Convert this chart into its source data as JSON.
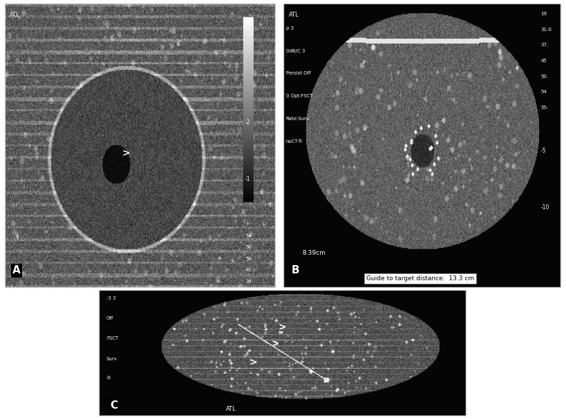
{
  "figure_bg": "#ffffff",
  "panel_bg": "#000000",
  "label_color": "#ffffff",
  "label_fontsize": 11,
  "label_bg": "#000000",
  "layout": {
    "top_row": [
      "A",
      "B"
    ],
    "bottom_row": [
      "C"
    ]
  },
  "panels": {
    "A": {
      "label": "A",
      "us_type": "thyroid_nodule",
      "arrow_symbol": ">",
      "bg_gradient": "medium_gray",
      "description": "Transverse US thyroid lobe with solid nodule and biopsy needle tip"
    },
    "B": {
      "label": "B",
      "us_type": "liver_mass",
      "bg_gradient": "dark",
      "text_overlay": [
        "p 3",
        "0dB/C 3",
        "Persist Off",
        "0 Opt:FSCT",
        "Rate:Surv",
        "noCT®"
      ],
      "text_overlay_right": [
        "19",
        "31-0",
        "37.",
        "45",
        "50.",
        "54",
        "55-"
      ],
      "text_bottom_left": "8.39cm",
      "text_bottom_right": "Guide to target distance:  13.3 cm",
      "description": "Subcostal transverse US liver with hypoechoic mass"
    },
    "C": {
      "label": "C",
      "us_type": "liver_fnab",
      "arrow_symbols": [
        ">",
        ">",
        ">"
      ],
      "bg_gradient": "medium_dark",
      "description": "FNAB of liver nodule with 22-G Chiba needle"
    }
  },
  "outer_border_color": "#cccccc",
  "outer_border_lw": 1.0
}
